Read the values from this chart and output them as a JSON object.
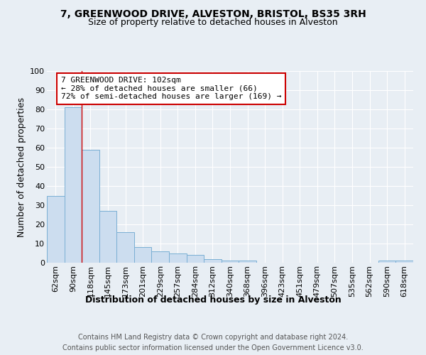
{
  "title_line1": "7, GREENWOOD DRIVE, ALVESTON, BRISTOL, BS35 3RH",
  "title_line2": "Size of property relative to detached houses in Alveston",
  "xlabel": "Distribution of detached houses by size in Alveston",
  "ylabel": "Number of detached properties",
  "footnote": "Contains HM Land Registry data © Crown copyright and database right 2024.\nContains public sector information licensed under the Open Government Licence v3.0.",
  "categories": [
    "62sqm",
    "90sqm",
    "118sqm",
    "145sqm",
    "173sqm",
    "201sqm",
    "229sqm",
    "257sqm",
    "284sqm",
    "312sqm",
    "340sqm",
    "368sqm",
    "396sqm",
    "423sqm",
    "451sqm",
    "479sqm",
    "507sqm",
    "535sqm",
    "562sqm",
    "590sqm",
    "618sqm"
  ],
  "values": [
    35,
    81,
    59,
    27,
    16,
    8,
    6,
    5,
    4,
    2,
    1,
    1,
    0,
    0,
    0,
    0,
    0,
    0,
    0,
    1,
    1
  ],
  "bar_color": "#ccddef",
  "bar_edge_color": "#7aafd4",
  "red_line_x": 1.5,
  "annotation_line1": "7 GREENWOOD DRIVE: 102sqm",
  "annotation_line2": "← 28% of detached houses are smaller (66)",
  "annotation_line3": "72% of semi-detached houses are larger (169) →",
  "annotation_box_color": "#ffffff",
  "annotation_box_edge_color": "#cc0000",
  "ylim": [
    0,
    100
  ],
  "background_color": "#e8eef4",
  "plot_bg_color": "#e8eef4",
  "grid_color": "#ffffff",
  "title1_fontsize": 10,
  "title2_fontsize": 9,
  "axis_fontsize": 8,
  "annotation_fontsize": 8,
  "footnote_fontsize": 7
}
